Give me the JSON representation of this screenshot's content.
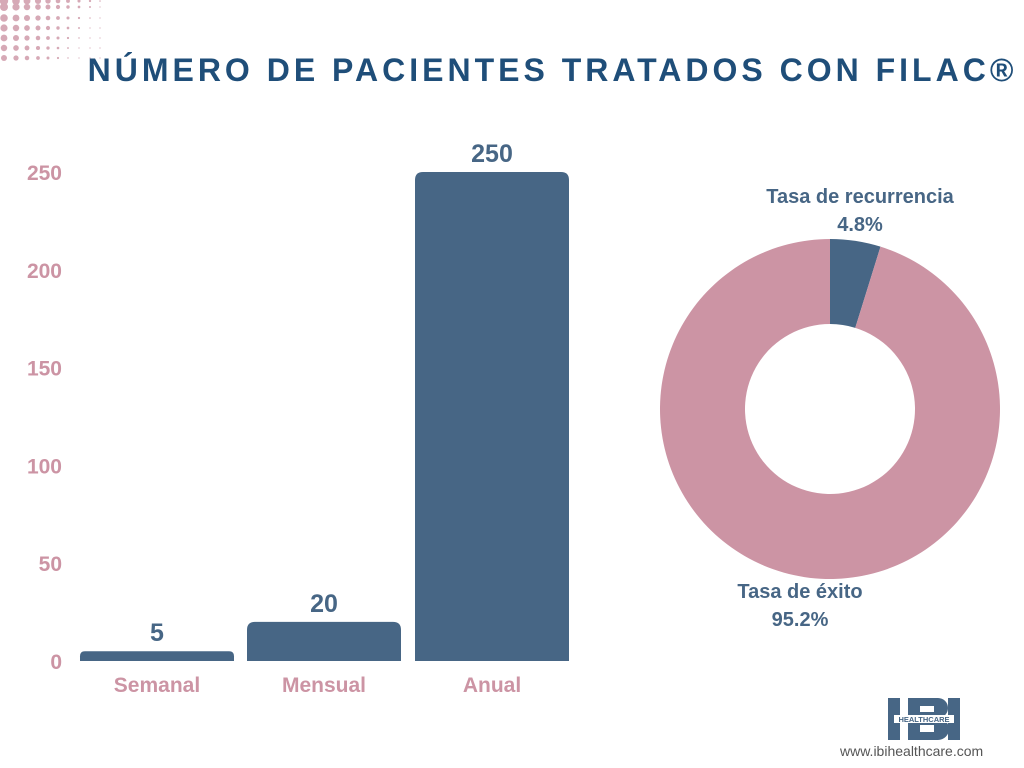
{
  "title": "NÚMERO DE PACIENTES TRATADOS CON FILAC®",
  "colors": {
    "pink": "#cc94a4",
    "blue": "#476685",
    "title": "#1f4e79"
  },
  "chart_data": [
    {
      "type": "bar",
      "categories": [
        "Semanal",
        "Mensual",
        "Anual"
      ],
      "values": [
        5,
        20,
        250
      ],
      "data_labels": [
        "5",
        "20",
        "250"
      ],
      "yticks": [
        "0",
        "50",
        "100",
        "150",
        "200",
        "250"
      ],
      "ylim": [
        0,
        250
      ],
      "grid": false
    },
    {
      "type": "pie",
      "donut": true,
      "slices": [
        {
          "label": "Tasa de recurrencia",
          "value": 4.8,
          "value_label": "4.8%",
          "color": "#476685"
        },
        {
          "label": "Tasa de éxito",
          "value": 95.2,
          "value_label": "95.2%",
          "color": "#cc94a4"
        }
      ]
    }
  ],
  "logo": {
    "text": "IBI",
    "subtext": "HEALTHCARE"
  },
  "footer": {
    "url": "www.ibihealthcare.com"
  }
}
